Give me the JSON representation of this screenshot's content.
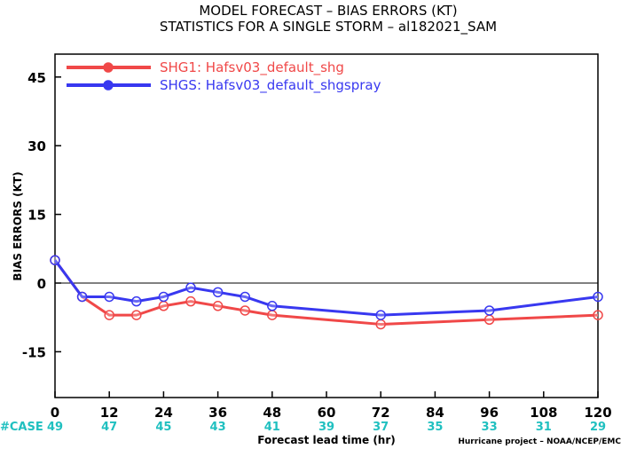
{
  "chart_data": {
    "type": "line",
    "title": "MODEL FORECAST – BIAS ERRORS (KT)",
    "subtitle": "STATISTICS FOR A SINGLE STORM – al182021_SAM",
    "xlabel": "Forecast lead time (hr)",
    "ylabel": "BIAS ERRORS (KT)",
    "xlim": [
      0,
      120
    ],
    "ylim": [
      -25,
      50
    ],
    "x_ticks": [
      "0",
      "12",
      "24",
      "36",
      "48",
      "60",
      "72",
      "84",
      "96",
      "108",
      "120"
    ],
    "y_ticks": [
      "45",
      "30",
      "15",
      "0",
      "-15"
    ],
    "case_label": "#CASE",
    "cases": [
      "49",
      "47",
      "45",
      "43",
      "41",
      "39",
      "37",
      "35",
      "33",
      "31",
      "29"
    ],
    "credit": "Hurricane project – NOAA/NCEP/EMC",
    "series": [
      {
        "name": "SHG1: Hafsv03_default_shg",
        "color": "#f04848",
        "x": [
          0,
          6,
          12,
          18,
          24,
          30,
          36,
          42,
          48,
          72,
          96,
          120
        ],
        "y": [
          5,
          -3,
          -7,
          -7,
          -5,
          -4,
          -5,
          -6,
          -7,
          -9,
          -8,
          -7
        ]
      },
      {
        "name": "SHGS: Hafsv03_default_shgspray",
        "color": "#3838f0",
        "x": [
          0,
          6,
          12,
          18,
          24,
          30,
          36,
          42,
          48,
          72,
          96,
          120
        ],
        "y": [
          5,
          -3,
          -3,
          -4,
          -3,
          -1,
          -2,
          -3,
          -5,
          -7,
          -6,
          -3
        ]
      }
    ]
  }
}
